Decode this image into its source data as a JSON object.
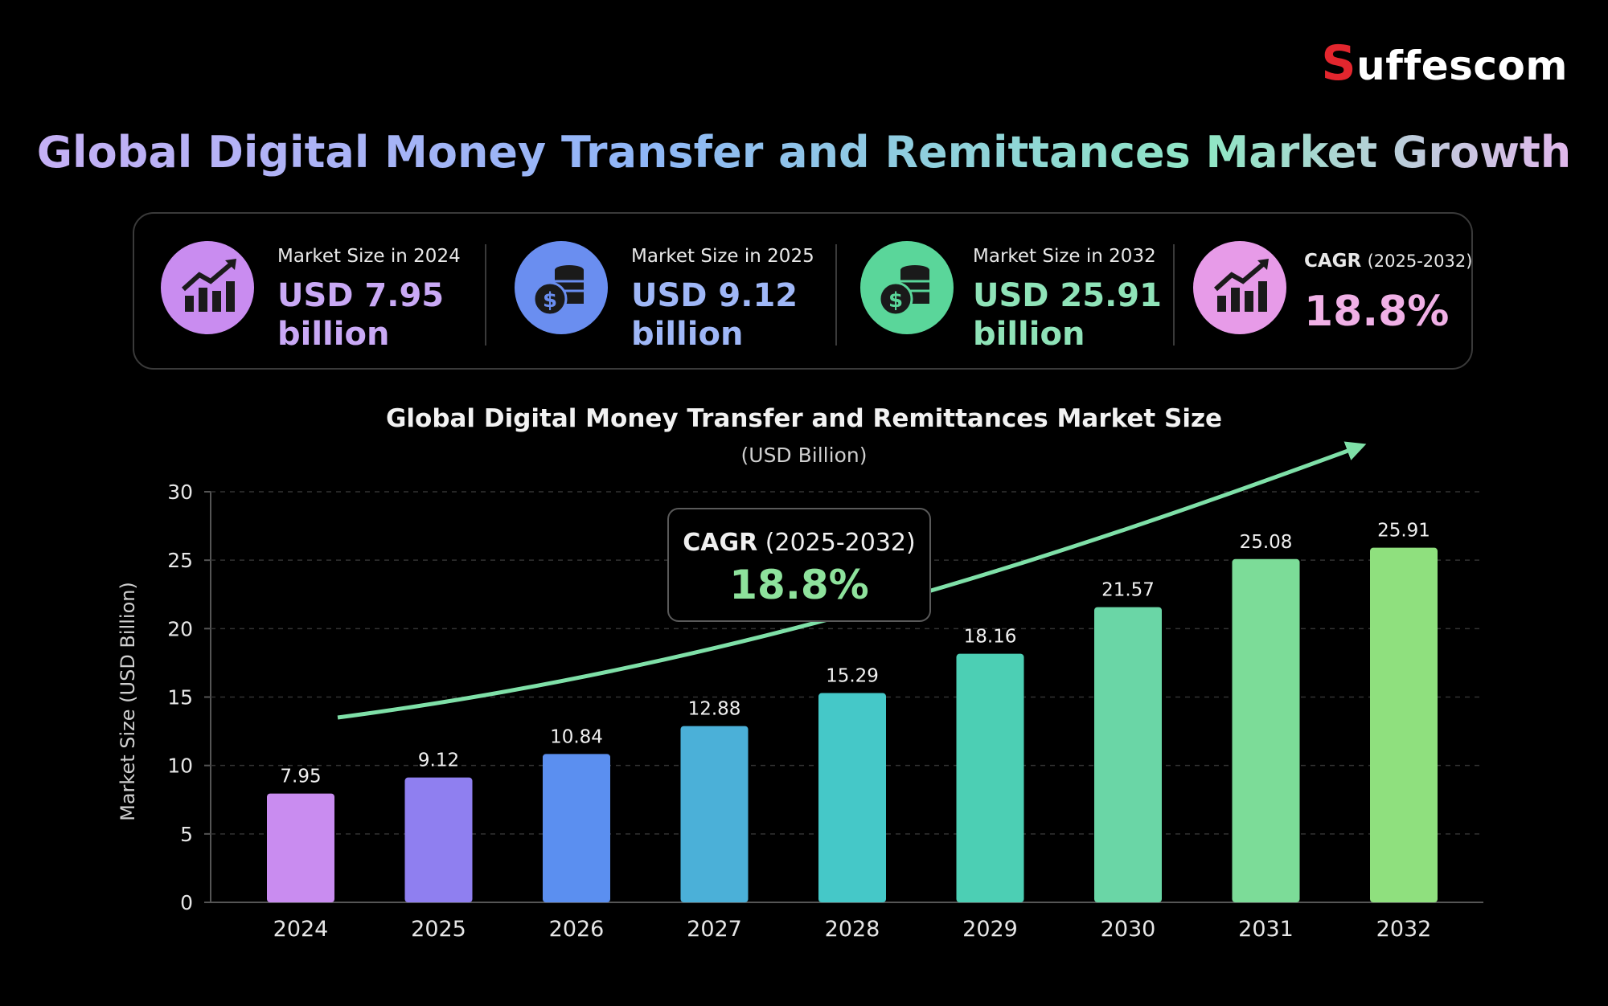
{
  "brand": {
    "logo_text": "uffescom",
    "logo_initial": "S"
  },
  "title": "Global Digital Money Transfer and Remittances Market Growth",
  "stats": [
    {
      "label": "Market Size in 2024",
      "value_line1": "USD 7.95",
      "value_line2": "billion",
      "icon": "chart-up-icon",
      "color": "#c98cf0",
      "value_color": "#c9a9f5"
    },
    {
      "label": "Market Size in 2025",
      "value_line1": "USD 9.12",
      "value_line2": "billion",
      "icon": "coins-icon",
      "color": "#6a8ef0",
      "value_color": "#9fb7f7"
    },
    {
      "label": "Market Size in 2032",
      "value_line1": "USD 25.91",
      "value_line2": "billion",
      "icon": "coins-icon",
      "color": "#5ad69a",
      "value_color": "#8fe3b8"
    },
    {
      "label_bold": "CAGR",
      "label_rest": "(2025-2032)",
      "value_line1": "18.8%",
      "icon": "chart-up-icon",
      "color": "#e79be8",
      "value_color": "#f0b0e6"
    }
  ],
  "cagr_callout": {
    "label_bold": "CAGR",
    "label_rest": "(2025-2032)",
    "value": "18.8%"
  },
  "chart_data": {
    "type": "bar",
    "title": "Global Digital Money Transfer and Remittances Market Size",
    "subtitle": "(USD Billion)",
    "ylabel": "Market Size (USD Billion)",
    "xlabel": "",
    "categories": [
      "2024",
      "2025",
      "2026",
      "2027",
      "2028",
      "2029",
      "2030",
      "2031",
      "2032"
    ],
    "values": [
      7.95,
      9.12,
      10.84,
      12.88,
      15.29,
      18.16,
      21.57,
      25.08,
      25.91
    ],
    "value_labels": [
      "7.95",
      "9.12",
      "10.84",
      "12.88",
      "15.29",
      "18.16",
      "21.57",
      "25.08",
      "25.91"
    ],
    "ylim": [
      0,
      30
    ],
    "yticks": [
      0,
      5,
      10,
      15,
      20,
      25,
      30
    ],
    "grid": true,
    "bar_colors": [
      "#c98cf0",
      "#8f7ff0",
      "#5b8ff0",
      "#4bb0d8",
      "#45c8c8",
      "#4ccfb4",
      "#6ad6a6",
      "#7cdc98",
      "#8fe07e"
    ]
  }
}
